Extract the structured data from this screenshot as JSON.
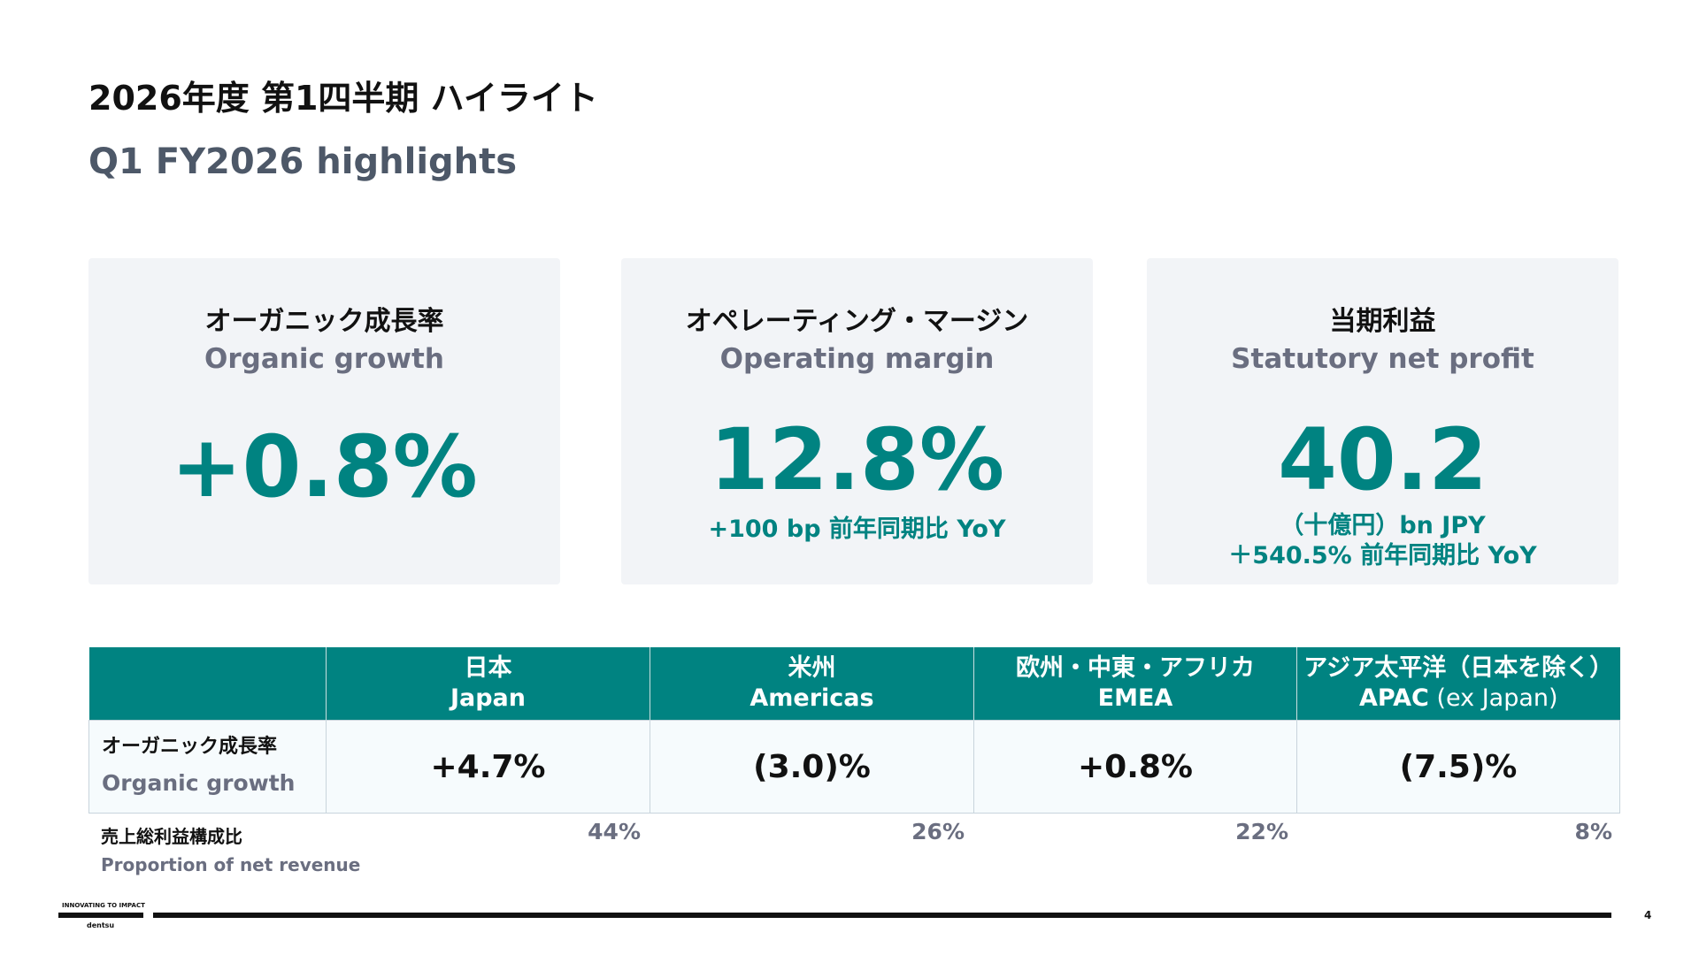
{
  "slide": {
    "title_jp": "2026年度 第1四半期 ハイライト",
    "title_en": "Q1 FY2026 highlights"
  },
  "cards": [
    {
      "label_jp": "オーガニック成長率",
      "label_en": "Organic growth",
      "value": "+0.8%"
    },
    {
      "label_jp": "オペレーティング・マージン",
      "label_en": "Operating margin",
      "value": "12.8%",
      "sub1": "+100 bp 前年同期比 YoY"
    },
    {
      "label_jp": "当期利益",
      "label_en": "Statutory net profit",
      "value": "40.2",
      "sub1": "（十億円）bn JPY",
      "sub2": "＋540.5% 前年同期比 YoY"
    }
  ],
  "regions": {
    "headers": [
      {
        "jp": "日本",
        "en": "Japan",
        "en_suffix": ""
      },
      {
        "jp": "米州",
        "en": "Americas",
        "en_suffix": ""
      },
      {
        "jp": "欧州・中東・アフリカ",
        "en": "EMEA",
        "en_suffix": ""
      },
      {
        "jp": "アジア太平洋（日本を除く）",
        "en": "APAC",
        "en_suffix": " (ex Japan)"
      }
    ],
    "row_label_jp": "オーガニック成長率",
    "row_label_en": "Organic growth",
    "values": [
      "+4.7%",
      "(3.0)%",
      "+0.8%",
      "(7.5)%"
    ]
  },
  "proportion": {
    "label_jp": "売上総利益構成比",
    "label_en": "Proportion of net revenue",
    "values": [
      "44%",
      "26%",
      "22%",
      "8%"
    ]
  },
  "footer": {
    "tagline": "INNOVATING TO IMPACT",
    "brand": "dentsu",
    "page": "4"
  }
}
